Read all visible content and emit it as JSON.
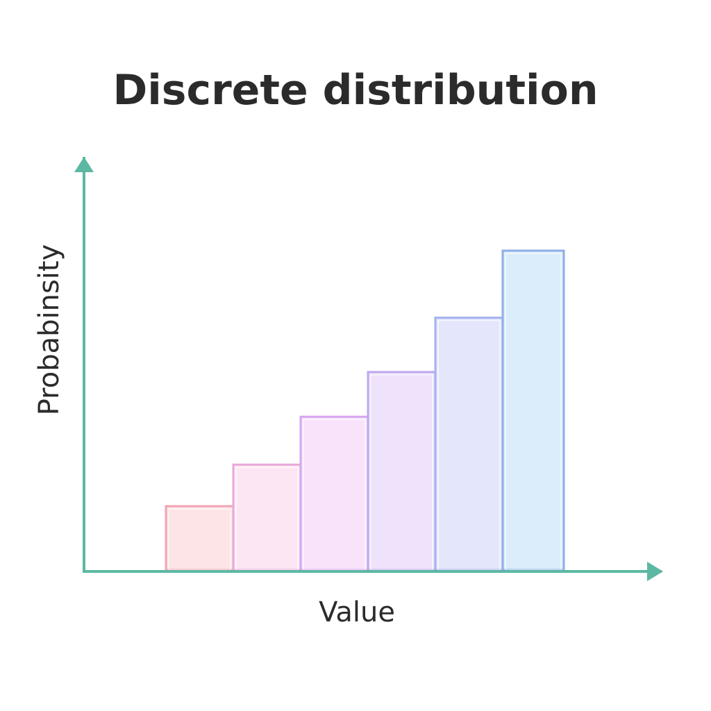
{
  "chart_data": {
    "type": "bar",
    "title": "Discrete distribution",
    "xlabel": "Value",
    "ylabel": "Probabinsity",
    "values": [
      0.2,
      0.33,
      0.48,
      0.62,
      0.79,
      1.0
    ],
    "ylim": [
      0,
      1.25
    ],
    "grid": false,
    "legend": "none",
    "axis_color": "#5cb8a2",
    "bar_fills": [
      "#fde4e6",
      "#fde6f4",
      "#f9e3fb",
      "#efe2fb",
      "#e4e6fb",
      "#dbedfb"
    ],
    "bar_strokes": [
      "#f1a3b1",
      "#e8a9d8",
      "#d6a6ee",
      "#bca9ee",
      "#a4b1ee",
      "#8eaee8"
    ]
  }
}
